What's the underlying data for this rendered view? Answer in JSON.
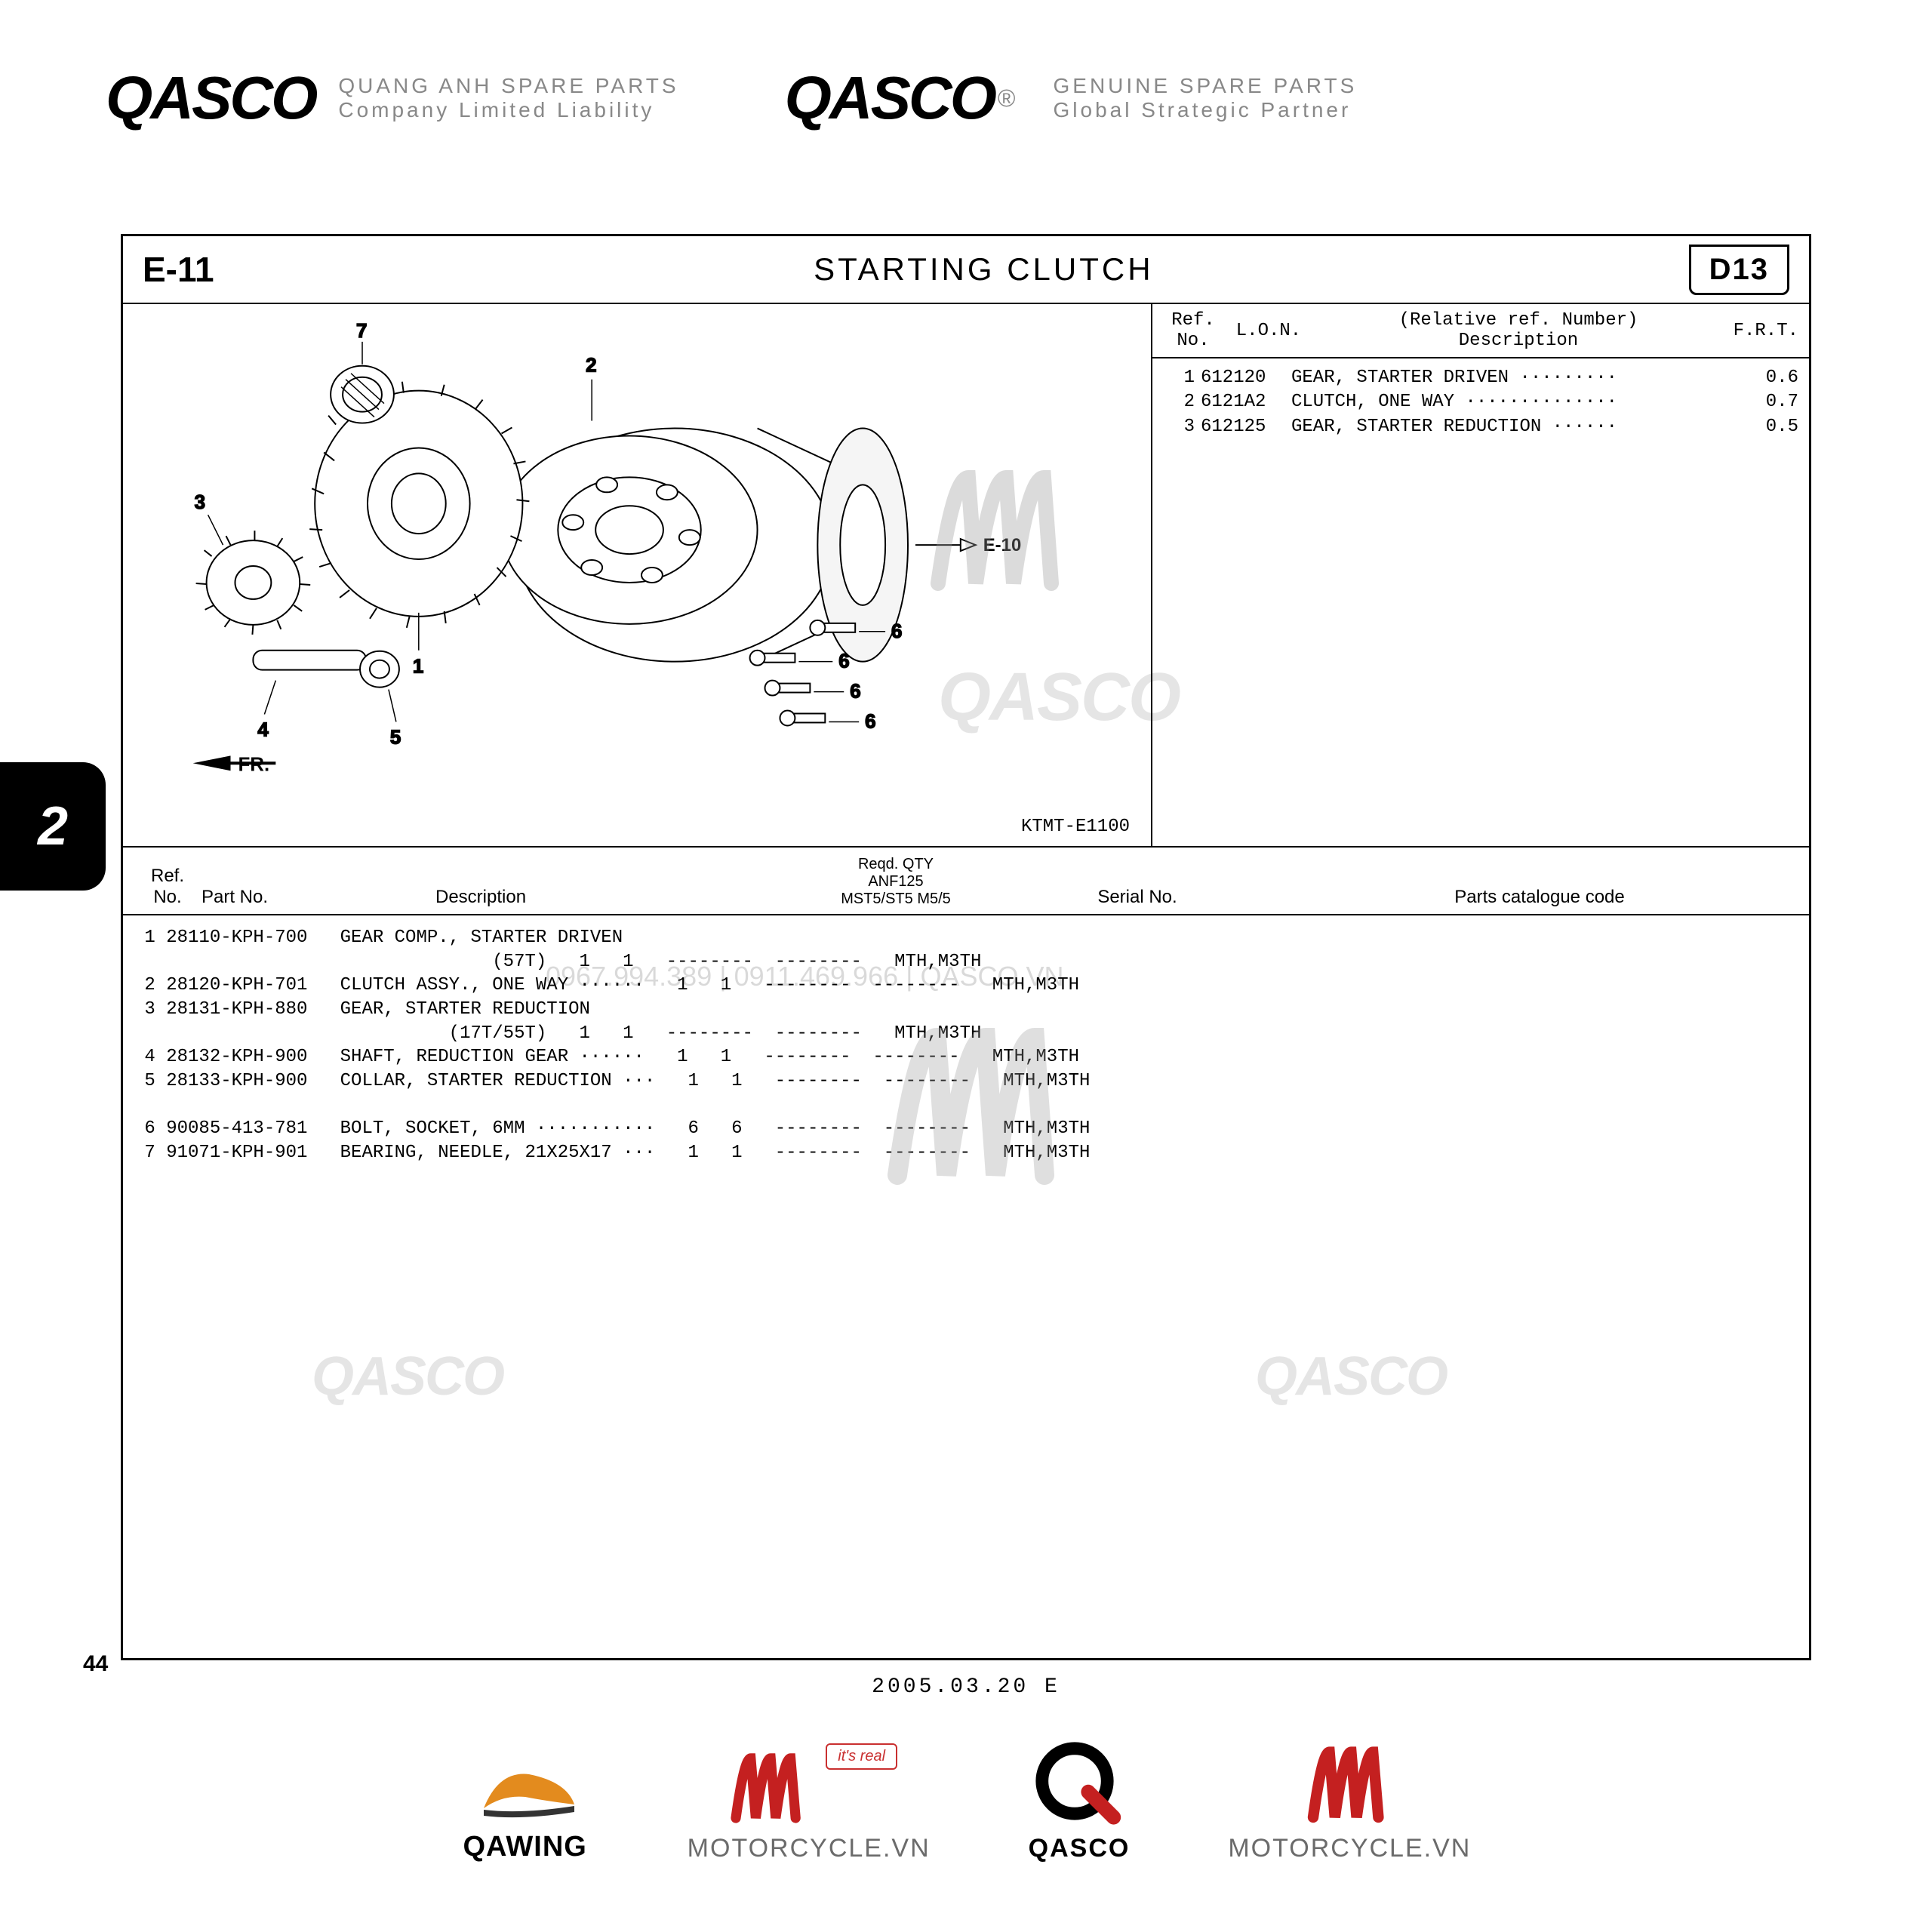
{
  "header": {
    "brand": "QASCO",
    "left_line1": "QUANG ANH SPARE PARTS",
    "left_line2": "Company Limited Liability",
    "right_line1": "GENUINE SPARE PARTS",
    "right_line2": "Global Strategic Partner",
    "registered": "®"
  },
  "page": {
    "section_code": "E-11",
    "title": "STARTING  CLUTCH",
    "right_code": "D13",
    "diagram_code": "KTMT-E1100",
    "side_tab": "2",
    "page_number": "44",
    "footer_date": "2005.03.20     E"
  },
  "diagram": {
    "callouts": [
      "1",
      "2",
      "3",
      "4",
      "5",
      "6",
      "7"
    ],
    "fr_label": "FR.",
    "ref_arrow": "E-10"
  },
  "frt": {
    "headers": {
      "ref": "Ref.\nNo.",
      "lon": "L.O.N.",
      "desc_top": "(Relative ref. Number)",
      "desc_bot": "Description",
      "frt": "F.R.T."
    },
    "rows": [
      {
        "ref": "1",
        "lon": "612120",
        "desc": "GEAR, STARTER DRIVEN ·········",
        "frt": "0.6"
      },
      {
        "ref": "2",
        "lon": "6121A2",
        "desc": "CLUTCH, ONE WAY ··············",
        "frt": "0.7"
      },
      {
        "ref": "3",
        "lon": "612125",
        "desc": "GEAR, STARTER REDUCTION ······",
        "frt": "0.5"
      }
    ]
  },
  "parts_table": {
    "headers": {
      "ref": "Ref.\nNo.",
      "partno": "Part No.",
      "desc": "Description",
      "qty_top": "Reqd. QTY",
      "qty_line2": "ANF125",
      "qty_line3": "MST5/ST5  M5/5",
      "serial": "Serial No.",
      "code": "Parts catalogue code"
    },
    "lines": [
      " 1 28110-KPH-700   GEAR COMP., STARTER DRIVEN",
      "                                 (57T)   1   1   --------  --------   MTH,M3TH",
      " 2 28120-KPH-701   CLUTCH ASSY., ONE WAY ······   1   1   --------  --------   MTH,M3TH",
      " 3 28131-KPH-880   GEAR, STARTER REDUCTION",
      "                             (17T/55T)   1   1   --------  --------   MTH,M3TH",
      " 4 28132-KPH-900   SHAFT, REDUCTION GEAR ······   1   1   --------  --------   MTH,M3TH",
      " 5 28133-KPH-900   COLLAR, STARTER REDUCTION ···   1   1   --------  --------   MTH,M3TH",
      "",
      " 6 90085-413-781   BOLT, SOCKET, 6MM ···········   6   6   --------  --------   MTH,M3TH",
      " 7 91071-KPH-901   BEARING, NEEDLE, 21X25X17 ···   1   1   --------  --------   MTH,M3TH"
    ]
  },
  "watermarks": {
    "qasco_big": "QASCO",
    "contact": "0967.994.389 | 0911.469.966 | QASCO.VN"
  },
  "footer_logos": {
    "qawing": "QAWING",
    "motorcycle": "MOTORCYCLE.VN",
    "qasco": "QASCO",
    "its_real": "it's real"
  },
  "colors": {
    "text": "#000000",
    "grey": "#888888",
    "red": "#c42020",
    "orange": "#e38b1e",
    "watermark_grey": "rgba(0,0,0,0.12)"
  }
}
